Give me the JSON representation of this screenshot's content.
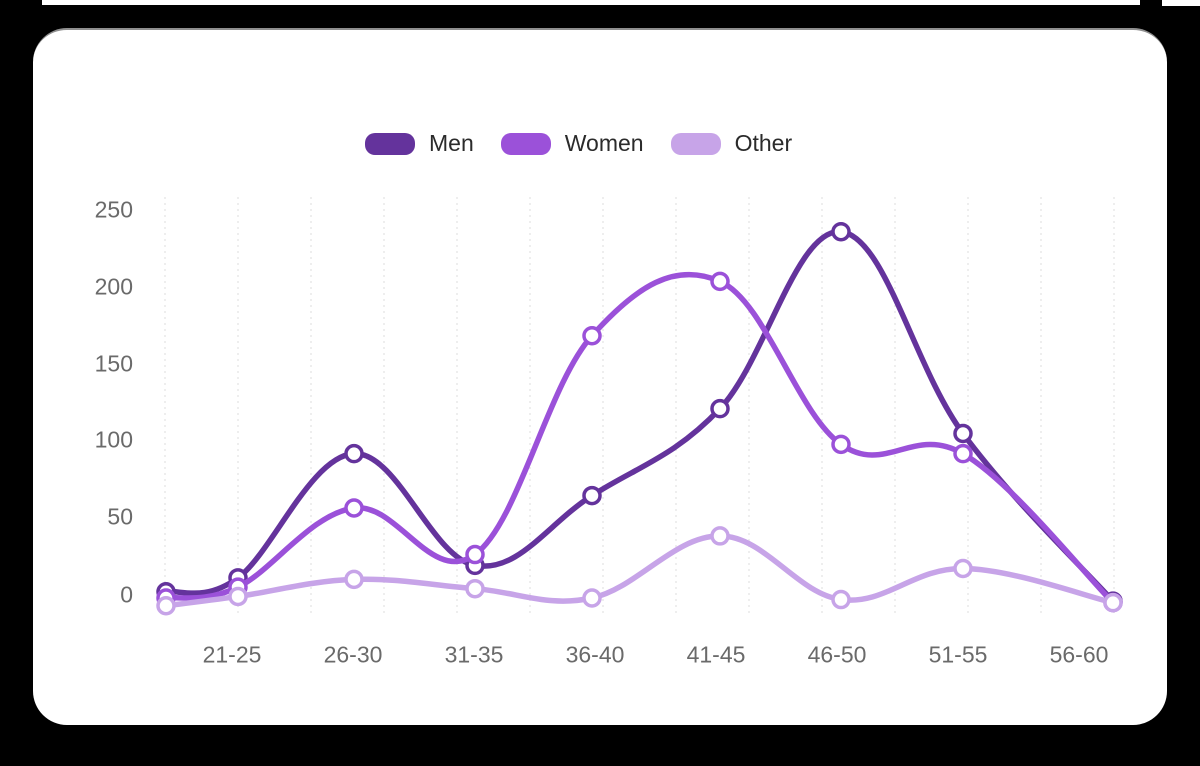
{
  "colors": {
    "page_background": "#000000",
    "card_background": "#ffffff",
    "grid_line": "#e8e8e8",
    "axis_label": "#6a6a6a",
    "legend_label": "#2b2b2b",
    "marker_fill": "#ffffff"
  },
  "legend": {
    "items": [
      {
        "label": "Men",
        "color": "#64339C"
      },
      {
        "label": "Women",
        "color": "#9B51D9"
      },
      {
        "label": "Other",
        "color": "#C7A4E8"
      }
    ]
  },
  "chart_data": {
    "type": "line",
    "curve": "smooth",
    "legend_position": "top",
    "grid": "vertical-dashed-only",
    "categories": [
      "21-25",
      "26-30",
      "31-35",
      "36-40",
      "41-45",
      "46-50",
      "51-55",
      "56-60"
    ],
    "point_categories": [
      "",
      "21-25",
      "26-30",
      "31-35",
      "36-40",
      "41-45",
      "46-50",
      "51-55",
      "56-60"
    ],
    "series": [
      {
        "name": "Men",
        "color": "#64339C",
        "values": [
          4,
          13,
          93,
          21,
          66,
          122,
          236,
          106,
          -2
        ]
      },
      {
        "name": "Women",
        "color": "#9B51D9",
        "values": [
          0,
          7,
          58,
          28,
          169,
          204,
          99,
          93,
          -3
        ]
      },
      {
        "name": "Other",
        "color": "#C7A4E8",
        "values": [
          -5,
          1,
          12,
          6,
          0,
          40,
          -1,
          19,
          -3
        ]
      }
    ],
    "y_ticks": [
      250,
      200,
      150,
      100,
      50,
      0
    ],
    "y_tick_labels": [
      "250",
      "200",
      "150",
      "100",
      "50",
      "0"
    ],
    "ylim": [
      -10,
      260
    ]
  }
}
